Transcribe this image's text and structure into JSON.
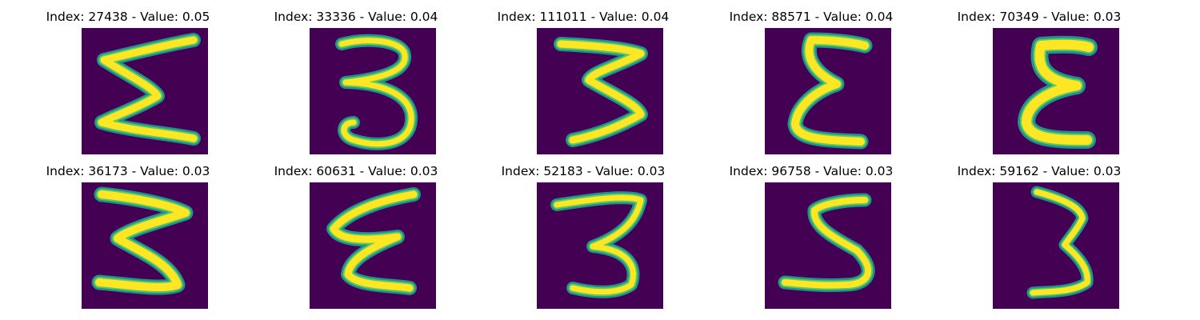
{
  "colors": {
    "background": "#440154",
    "stroke_edge": "#21918c",
    "stroke_mid": "#5ec962",
    "stroke_core": "#fde725"
  },
  "panels": [
    {
      "index": "27438",
      "value": "0.05",
      "title": "Index: 27438 - Value: 0.05",
      "glyph": "3"
    },
    {
      "index": "33336",
      "value": "0.04",
      "title": "Index: 33336 - Value: 0.04",
      "glyph": "3"
    },
    {
      "index": "111011",
      "value": "0.04",
      "title": "Index: 111011 - Value: 0.04",
      "glyph": "3"
    },
    {
      "index": "88571",
      "value": "0.04",
      "title": "Index: 88571 - Value: 0.04",
      "glyph": "3"
    },
    {
      "index": "70349",
      "value": "0.03",
      "title": "Index: 70349 - Value: 0.03",
      "glyph": "3"
    },
    {
      "index": "36173",
      "value": "0.03",
      "title": "Index: 36173 - Value: 0.03",
      "glyph": "3"
    },
    {
      "index": "60631",
      "value": "0.03",
      "title": "Index: 60631 - Value: 0.03",
      "glyph": "3"
    },
    {
      "index": "52183",
      "value": "0.03",
      "title": "Index: 52183 - Value: 0.03",
      "glyph": "3"
    },
    {
      "index": "96758",
      "value": "0.03",
      "title": "Index: 96758 - Value: 0.03",
      "glyph": "3"
    },
    {
      "index": "59162",
      "value": "0.03",
      "title": "Index: 59162 - Value: 0.03",
      "glyph": "3"
    }
  ]
}
